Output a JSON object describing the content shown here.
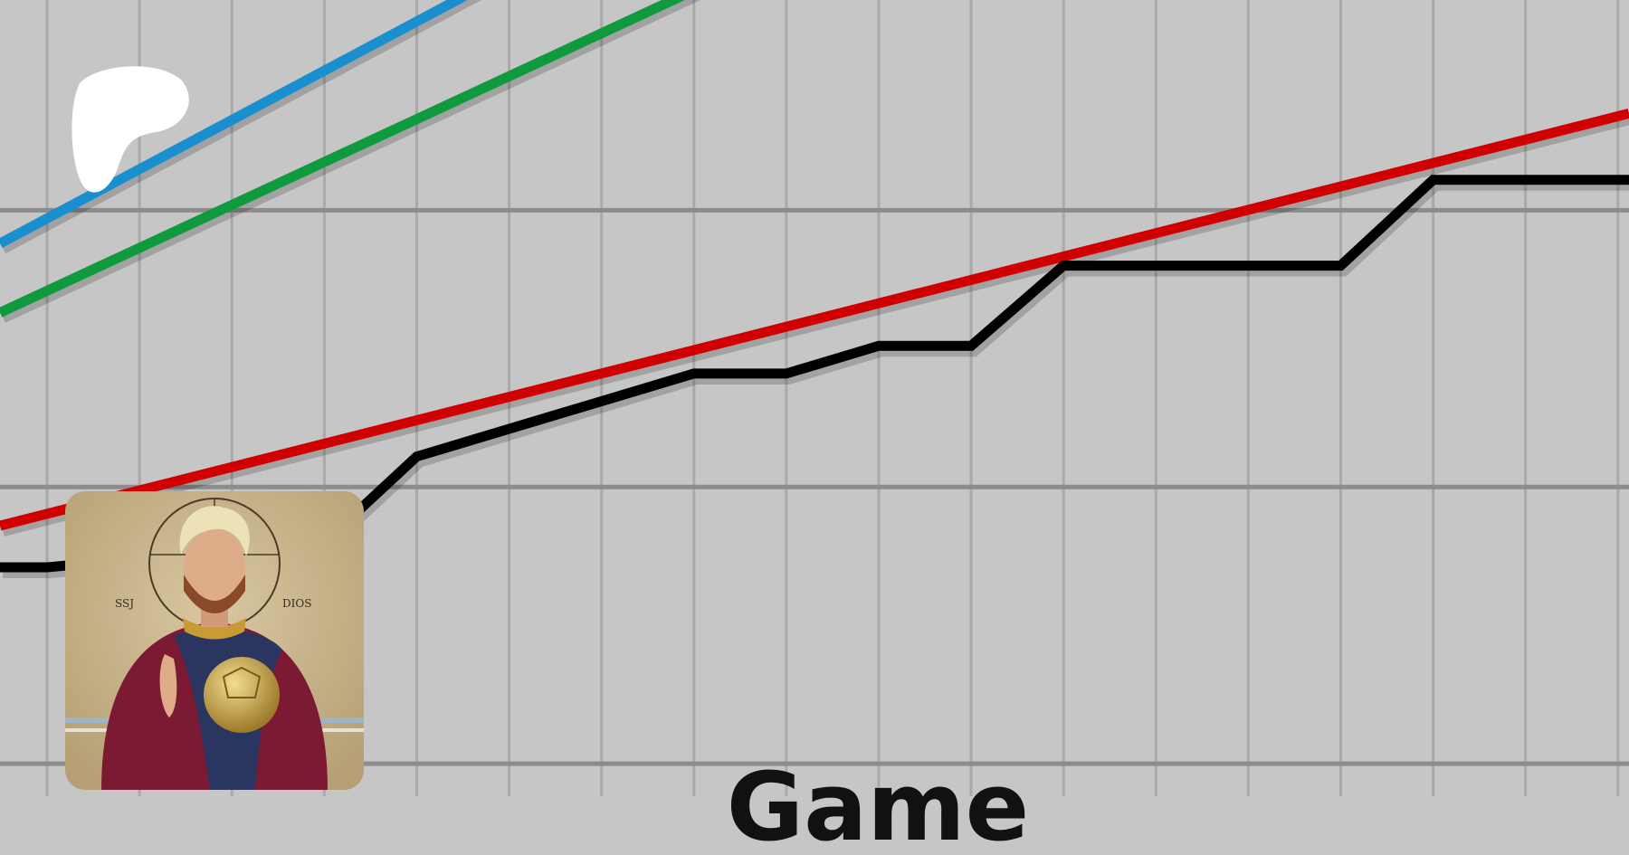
{
  "chart_data": {
    "type": "line",
    "title": "",
    "xlabel": "Game",
    "ylabel": "",
    "xlim": [
      -0.51,
      17.12
    ],
    "ylim": [
      -0.33,
      2.76
    ],
    "x_gridlines": [
      0,
      1,
      2,
      3,
      4,
      5,
      6,
      7,
      8,
      9,
      10,
      11,
      12,
      13,
      14,
      15,
      16,
      17
    ],
    "y_gridlines": [
      0,
      1,
      2
    ],
    "grid": true,
    "series": [
      {
        "color": "#1a8fcf",
        "x": [
          -0.51,
          10
        ],
        "y": [
          1.88,
          3.75
        ]
      },
      {
        "color": "#109a3e",
        "x": [
          -0.51,
          10
        ],
        "y": [
          1.63,
          3.26
        ]
      },
      {
        "color": "#d00000",
        "x": [
          -0.51,
          17.12
        ],
        "y": [
          0.86,
          2.35
        ]
      },
      {
        "color": "#000000",
        "x": [
          -0.51,
          0,
          2,
          3,
          4,
          7,
          8,
          9,
          10,
          11,
          14,
          15,
          17.12
        ],
        "y": [
          0.71,
          0.71,
          0.77,
          0.8,
          1.11,
          1.41,
          1.41,
          1.51,
          1.51,
          1.8,
          1.8,
          2.11,
          2.11
        ]
      }
    ]
  },
  "overlay": {
    "logo_icon": "patreon-logo",
    "avatar": "profile-picture"
  },
  "colors": {
    "background": "#c6c6c6",
    "grid": "#a9a9a9",
    "major_grid": "#8c8c8c"
  }
}
